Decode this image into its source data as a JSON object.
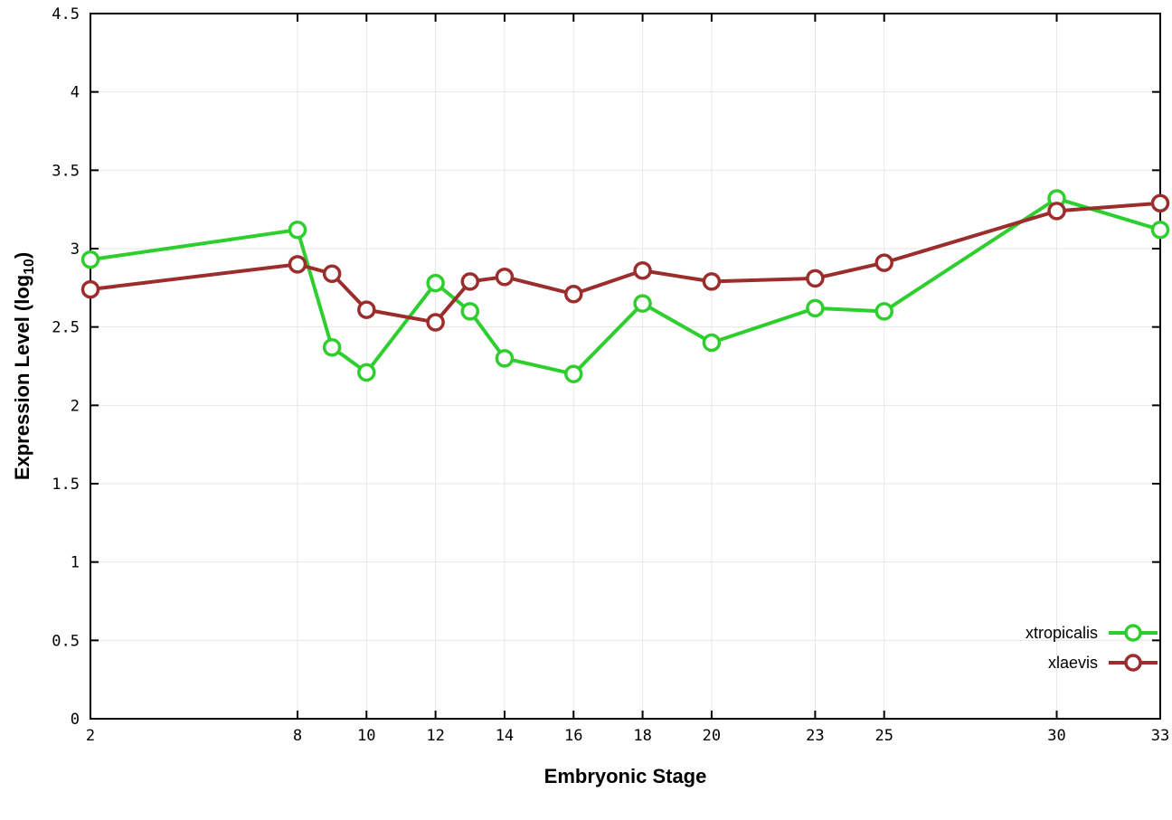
{
  "chart_data": {
    "type": "line",
    "title": "",
    "xlabel": "Embryonic Stage",
    "ylabel": {
      "text": "Expression Level (log",
      "subscript": "10",
      "suffix": ")"
    },
    "xlim": [
      2,
      33
    ],
    "ylim": [
      0,
      4.5
    ],
    "x_tick_values": [
      2,
      8,
      10,
      12,
      14,
      16,
      18,
      20,
      23,
      25,
      30,
      33
    ],
    "x_tick_labels": [
      "2",
      "8",
      "10",
      "12",
      "14",
      "16",
      "18",
      "20",
      "23",
      "25",
      "30",
      "33"
    ],
    "y_tick_values": [
      0,
      0.5,
      1,
      1.5,
      2,
      2.5,
      3,
      3.5,
      4,
      4.5
    ],
    "y_tick_labels": [
      "0",
      "0.5",
      "1",
      "1.5",
      "2",
      "2.5",
      "3",
      "3.5",
      "4",
      "4.5"
    ],
    "grid": true,
    "legend_position": "bottom-right",
    "x": [
      2,
      8,
      9,
      10,
      12,
      13,
      14,
      16,
      18,
      20,
      23,
      25,
      30,
      33
    ],
    "series": [
      {
        "name": "xtropicalis",
        "color": "#2fce2f",
        "values": [
          2.93,
          3.12,
          2.37,
          2.21,
          2.78,
          2.6,
          2.3,
          2.2,
          2.65,
          2.4,
          2.62,
          2.6,
          3.32,
          3.12
        ]
      },
      {
        "name": "xlaevis",
        "color": "#9b2d2d",
        "values": [
          2.74,
          2.9,
          2.84,
          2.61,
          2.53,
          2.79,
          2.82,
          2.71,
          2.86,
          2.79,
          2.81,
          2.91,
          3.24,
          3.29
        ]
      }
    ],
    "axis_color": "#000000",
    "grid_color": "#e6e6e6",
    "background": "#ffffff"
  }
}
